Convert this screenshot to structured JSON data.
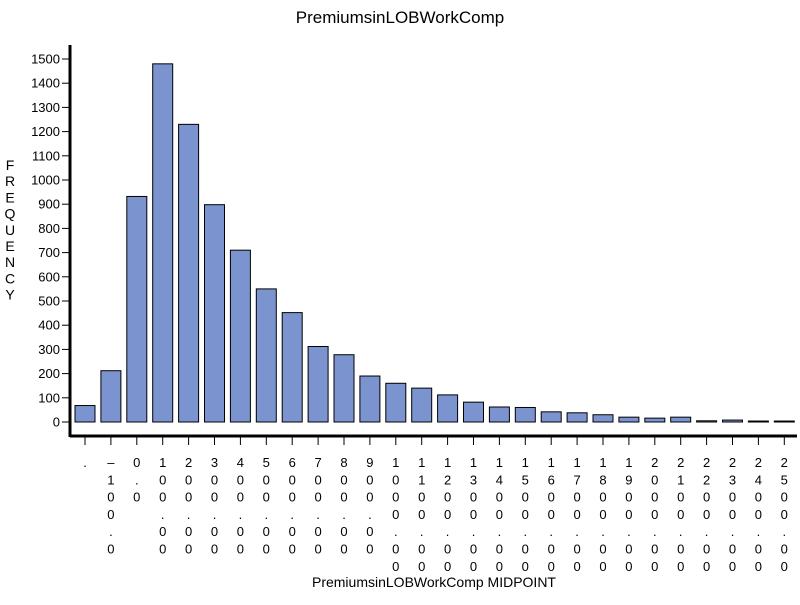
{
  "chart_data": {
    "type": "bar",
    "title": "PremiumsinLOBWorkComp",
    "xlabel": "PremiumsinLOBWorkComp  MIDPOINT",
    "ylabel": "FREQUENCY",
    "ylim": [
      0,
      1500
    ],
    "yticks": [
      0,
      100,
      200,
      300,
      400,
      500,
      600,
      700,
      800,
      900,
      1000,
      1100,
      1200,
      1300,
      1400,
      1500
    ],
    "categories": [
      ".",
      "–100.0",
      "0.0",
      "100.00",
      "200.00",
      "300.00",
      "400.00",
      "500.00",
      "600.00",
      "700.00",
      "800.00",
      "900.00",
      "1000.00",
      "1100.00",
      "1200.00",
      "1300.00",
      "1400.00",
      "1500.00",
      "1600.00",
      "1700.00",
      "1800.00",
      "1900.00",
      "2000.00",
      "2100.00",
      "2200.00",
      "2300.00",
      "2400.00",
      "2500.00"
    ],
    "values": [
      68,
      212,
      932,
      1480,
      1230,
      898,
      710,
      550,
      452,
      312,
      278,
      190,
      160,
      140,
      112,
      82,
      62,
      60,
      42,
      38,
      30,
      20,
      16,
      20,
      5,
      8,
      4,
      4
    ],
    "bar_color": "#7b93cf",
    "grid": false,
    "legend": "none"
  }
}
